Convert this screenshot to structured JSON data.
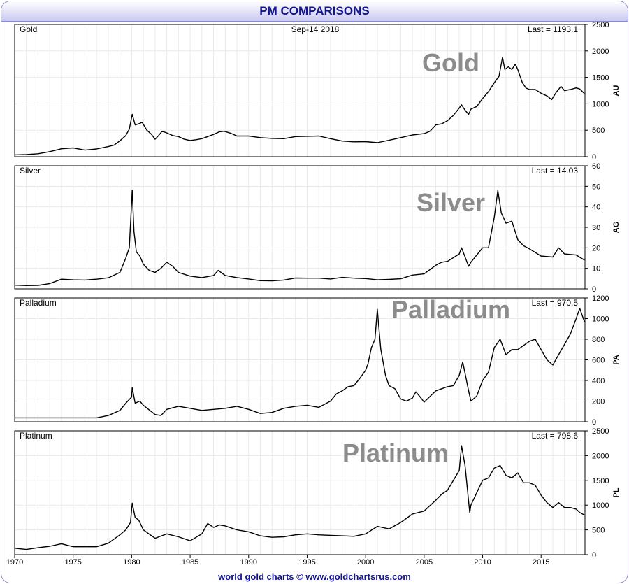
{
  "page": {
    "title": "PM COMPARISONS",
    "date": "Sep-14 2018",
    "footer": "world gold charts © www.goldchartsrus.com"
  },
  "chart_data": [
    {
      "type": "line",
      "name": "Gold",
      "watermark": "Gold",
      "last_label": "Last = 1193.1",
      "ylabel": "AU",
      "ylim": [
        0,
        2500
      ],
      "yticks": [
        0,
        500,
        1000,
        1500,
        2000,
        2500
      ],
      "xlim": [
        1970,
        2018.75
      ],
      "grid": true,
      "color": "#000000",
      "x": [
        1970,
        1971,
        1972,
        1973,
        1974,
        1975,
        1976,
        1977,
        1978,
        1978.5,
        1979,
        1979.5,
        1979.8,
        1980.05,
        1980.3,
        1980.6,
        1980.9,
        1981.3,
        1981.7,
        1982,
        1982.3,
        1982.6,
        1983,
        1983.5,
        1984,
        1984.5,
        1985,
        1985.5,
        1986,
        1986.5,
        1987,
        1987.5,
        1987.9,
        1988.5,
        1989,
        1990,
        1991,
        1992,
        1993,
        1994,
        1995,
        1996,
        1997,
        1998,
        1999,
        2000,
        2001,
        2002,
        2003,
        2004,
        2005,
        2005.5,
        2006,
        2006.5,
        2007,
        2007.5,
        2008,
        2008.2,
        2008.5,
        2008.8,
        2009,
        2009.5,
        2010,
        2010.5,
        2011,
        2011.4,
        2011.7,
        2011.9,
        2012.2,
        2012.5,
        2012.8,
        2013,
        2013.4,
        2013.7,
        2014,
        2014.5,
        2015,
        2015.5,
        2015.9,
        2016.3,
        2016.7,
        2017,
        2017.5,
        2018,
        2018.3,
        2018.7
      ],
      "values": [
        35,
        40,
        55,
        95,
        150,
        165,
        125,
        145,
        190,
        220,
        300,
        400,
        520,
        800,
        600,
        620,
        650,
        500,
        420,
        330,
        400,
        480,
        450,
        400,
        380,
        330,
        305,
        320,
        340,
        380,
        420,
        470,
        480,
        440,
        390,
        390,
        360,
        345,
        340,
        380,
        385,
        390,
        340,
        295,
        280,
        285,
        265,
        310,
        360,
        410,
        435,
        480,
        600,
        620,
        680,
        780,
        920,
        980,
        880,
        800,
        900,
        950,
        1100,
        1230,
        1400,
        1520,
        1880,
        1650,
        1700,
        1650,
        1750,
        1650,
        1400,
        1300,
        1270,
        1270,
        1200,
        1150,
        1080,
        1220,
        1330,
        1250,
        1270,
        1300,
        1280,
        1193
      ]
    },
    {
      "type": "line",
      "name": "Silver",
      "watermark": "Silver",
      "last_label": "Last = 14.03",
      "ylabel": "AG",
      "ylim": [
        0,
        60
      ],
      "yticks": [
        0,
        10,
        20,
        30,
        40,
        50,
        60
      ],
      "xlim": [
        1970,
        2018.75
      ],
      "grid": true,
      "color": "#000000",
      "x": [
        1970,
        1971,
        1972,
        1973,
        1974,
        1975,
        1976,
        1977,
        1978,
        1979,
        1979.5,
        1979.8,
        1980.05,
        1980.2,
        1980.4,
        1980.7,
        1981,
        1981.5,
        1982,
        1982.5,
        1983,
        1983.5,
        1984,
        1985,
        1986,
        1987,
        1987.4,
        1988,
        1989,
        1990,
        1991,
        1992,
        1993,
        1994,
        1995,
        1996,
        1997,
        1998,
        1999,
        2000,
        2001,
        2002,
        2003,
        2004,
        2005,
        2006,
        2006.5,
        2007,
        2008,
        2008.2,
        2008.8,
        2009,
        2010,
        2010.5,
        2011,
        2011.3,
        2011.6,
        2012,
        2012.5,
        2013,
        2013.5,
        2014,
        2015,
        2016,
        2016.5,
        2017,
        2018,
        2018.7
      ],
      "values": [
        1.8,
        1.6,
        1.7,
        2.6,
        4.7,
        4.4,
        4.3,
        4.7,
        5.4,
        8,
        15,
        20,
        48,
        28,
        18,
        16,
        12,
        9,
        8,
        10,
        13,
        11,
        8,
        6.2,
        5.5,
        6.5,
        9,
        6.5,
        5.5,
        4.8,
        4,
        3.9,
        4.3,
        5.3,
        5.2,
        5.2,
        4.8,
        5.6,
        5.2,
        5,
        4.4,
        4.6,
        4.9,
        6.7,
        7.3,
        11.5,
        13,
        13.4,
        17,
        20,
        11,
        13,
        20,
        20,
        35,
        48,
        37,
        32,
        33,
        24,
        21,
        19.5,
        16,
        15.5,
        20,
        17,
        16.5,
        14
      ]
    },
    {
      "type": "line",
      "name": "Palladium",
      "watermark": "Palladium",
      "last_label": "Last = 970.5",
      "ylabel": "PA",
      "ylim": [
        0,
        1200
      ],
      "yticks": [
        0,
        200,
        400,
        600,
        800,
        1000,
        1200
      ],
      "xlim": [
        1970,
        2018.75
      ],
      "grid": true,
      "color": "#000000",
      "x": [
        1970,
        1971,
        1972,
        1973,
        1974,
        1975,
        1976,
        1977,
        1978,
        1979,
        1979.5,
        1980,
        1980.05,
        1980.3,
        1980.7,
        1981,
        1982,
        1982.5,
        1983,
        1984,
        1985,
        1986,
        1987,
        1988,
        1989,
        1990,
        1991,
        1992,
        1993,
        1994,
        1995,
        1996,
        1997,
        1997.5,
        1998,
        1998.5,
        1999,
        1999.5,
        2000,
        2000.2,
        2000.5,
        2000.8,
        2001,
        2001.1,
        2001.3,
        2001.7,
        2002,
        2002.5,
        2003,
        2003.5,
        2004,
        2004.3,
        2004.8,
        2005,
        2006,
        2006.5,
        2007,
        2007.5,
        2008,
        2008.3,
        2008.8,
        2009,
        2009.5,
        2010,
        2010.5,
        2011,
        2011.5,
        2012,
        2012.5,
        2013,
        2013.5,
        2014,
        2014.5,
        2015,
        2015.5,
        2016,
        2016.5,
        2017,
        2017.5,
        2018,
        2018.3,
        2018.7
      ],
      "values": [
        38,
        38,
        38,
        38,
        38,
        38,
        38,
        38,
        60,
        110,
        180,
        240,
        330,
        180,
        200,
        160,
        70,
        60,
        120,
        150,
        130,
        110,
        120,
        130,
        150,
        120,
        80,
        90,
        130,
        150,
        160,
        140,
        200,
        270,
        300,
        340,
        350,
        420,
        500,
        560,
        720,
        800,
        1090,
        950,
        700,
        450,
        350,
        320,
        220,
        200,
        230,
        290,
        220,
        190,
        300,
        320,
        340,
        350,
        450,
        580,
        300,
        200,
        250,
        400,
        480,
        720,
        800,
        650,
        700,
        700,
        740,
        780,
        800,
        700,
        600,
        550,
        650,
        750,
        850,
        1000,
        1100,
        970
      ]
    },
    {
      "type": "line",
      "name": "Platinum",
      "watermark": "Platinum",
      "last_label": "Last = 798.6",
      "ylabel": "PL",
      "ylim": [
        0,
        2500
      ],
      "yticks": [
        0,
        500,
        1000,
        1500,
        2000,
        2500
      ],
      "xlim": [
        1970,
        2018.75
      ],
      "grid": true,
      "color": "#000000",
      "x": [
        1970,
        1971,
        1972,
        1973,
        1974,
        1975,
        1976,
        1977,
        1978,
        1979,
        1979.5,
        1979.9,
        1980.05,
        1980.3,
        1980.6,
        1981,
        1982,
        1983,
        1984,
        1985,
        1986,
        1986.5,
        1987,
        1987.5,
        1988,
        1989,
        1990,
        1991,
        1992,
        1993,
        1994,
        1995,
        1996,
        1997,
        1998,
        1999,
        2000,
        2001,
        2002,
        2003,
        2004,
        2005,
        2006,
        2006.5,
        2007,
        2008,
        2008.2,
        2008.5,
        2008.9,
        2009,
        2010,
        2010.5,
        2011,
        2011.5,
        2012,
        2012.5,
        2013,
        2013.5,
        2014,
        2014.5,
        2015,
        2015.5,
        2016,
        2016.5,
        2017,
        2017.5,
        2018,
        2018.3,
        2018.7
      ],
      "values": [
        130,
        105,
        140,
        170,
        220,
        160,
        160,
        160,
        230,
        400,
        500,
        650,
        1040,
        750,
        700,
        500,
        330,
        420,
        360,
        280,
        420,
        630,
        550,
        600,
        580,
        500,
        460,
        380,
        350,
        360,
        400,
        420,
        400,
        390,
        380,
        370,
        420,
        570,
        520,
        650,
        820,
        880,
        1100,
        1220,
        1300,
        1700,
        2200,
        1800,
        850,
        1000,
        1500,
        1550,
        1750,
        1800,
        1600,
        1550,
        1650,
        1450,
        1450,
        1400,
        1200,
        1050,
        950,
        1050,
        950,
        950,
        920,
        850,
        799
      ]
    }
  ],
  "x_axis": {
    "ticks": [
      "1970",
      "1975",
      "1980",
      "1985",
      "1990",
      "1995",
      "2000",
      "2005",
      "2010",
      "2015"
    ]
  }
}
